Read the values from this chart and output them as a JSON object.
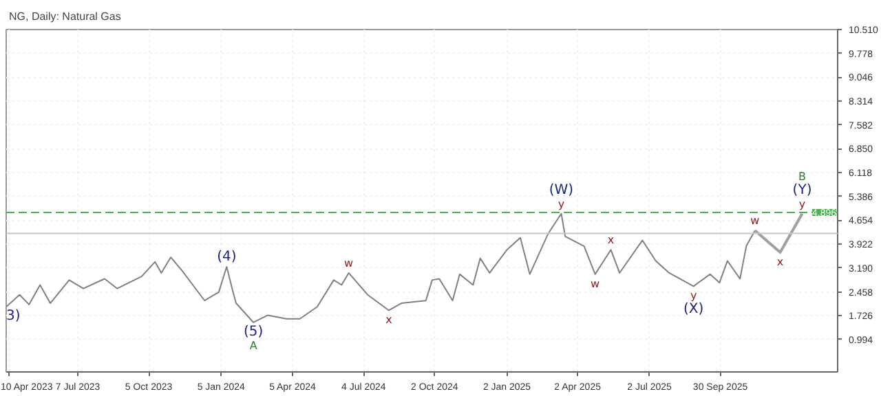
{
  "chart_data": {
    "type": "line",
    "title": "NG, Daily:  Natural Gas",
    "x": [
      "2023-04-07",
      "2023-04-24",
      "2023-05-06",
      "2023-05-20",
      "2023-06-02",
      "2023-06-26",
      "2023-07-14",
      "2023-08-10",
      "2023-08-26",
      "2023-09-26",
      "2023-10-13",
      "2023-10-21",
      "2023-11-02",
      "2023-11-16",
      "2023-12-15",
      "2024-01-02",
      "2024-01-12",
      "2024-01-21",
      "2024-01-24",
      "2024-02-15",
      "2024-03-04",
      "2024-03-28",
      "2024-04-14",
      "2024-05-06",
      "2024-05-27",
      "2024-06-06",
      "2024-06-15",
      "2024-07-09",
      "2024-08-05",
      "2024-08-21",
      "2024-09-21",
      "2024-09-29",
      "2024-10-08",
      "2024-10-25",
      "2024-11-03",
      "2024-11-20",
      "2024-11-29",
      "2024-12-11",
      "2025-01-02",
      "2025-01-19",
      "2025-01-31",
      "2025-02-23",
      "2025-03-12",
      "2025-03-17",
      "2025-04-10",
      "2025-04-24",
      "2025-05-14",
      "2025-05-25",
      "2025-06-23",
      "2025-07-10",
      "2025-07-27",
      "2025-08-27",
      "2025-09-17",
      "2025-09-29",
      "2025-10-09",
      "2025-10-25",
      "2025-11-02",
      "2025-11-13"
    ],
    "series": [
      {
        "color": "#808080",
        "values": [
          2.0,
          2.37,
          2.07,
          2.67,
          2.11,
          2.82,
          2.56,
          2.86,
          2.56,
          2.93,
          3.38,
          3.04,
          3.52,
          3.12,
          2.19,
          2.45,
          3.23,
          2.37,
          2.11,
          1.52,
          1.74,
          1.63,
          1.63,
          2.0,
          2.82,
          2.67,
          3.04,
          2.37,
          1.89,
          2.11,
          2.19,
          2.82,
          2.86,
          2.19,
          3.0,
          2.67,
          3.49,
          3.04,
          3.75,
          4.12,
          3.0,
          4.23,
          4.86,
          4.16,
          3.86,
          3.0,
          3.75,
          3.04,
          4.04,
          3.41,
          3.04,
          2.63,
          3.0,
          2.74,
          3.41,
          2.86,
          3.86,
          4.34
        ]
      },
      {
        "color": "#a0a0a0",
        "x": [
          "2025-11-13",
          "2025-12-15",
          "2026-01-12"
        ],
        "values": [
          4.34,
          3.67,
          4.86
        ]
      }
    ],
    "xlim": [
      "2023-04-07",
      "2026-02-26"
    ],
    "xticks": [
      {
        "value": "2023-04-10",
        "label": "10 Apr 2023"
      },
      {
        "value": "2023-07-07",
        "label": "7 Jul 2023"
      },
      {
        "value": "2023-10-05",
        "label": "5 Oct 2023"
      },
      {
        "value": "2024-01-05",
        "label": "5 Jan 2024"
      },
      {
        "value": "2024-04-05",
        "label": "5 Apr 2024"
      },
      {
        "value": "2024-07-04",
        "label": "4 Jul 2024"
      },
      {
        "value": "2024-10-02",
        "label": "2 Oct 2024"
      },
      {
        "value": "2025-01-02",
        "label": "2 Jan 2025"
      },
      {
        "value": "2025-04-02",
        "label": "2 Apr 2025"
      },
      {
        "value": "2025-07-02",
        "label": "2 Jul 2025"
      },
      {
        "value": "2025-09-30",
        "label": "30 Sep 2025"
      }
    ],
    "ylim": [
      0.0,
      10.51
    ],
    "yticks": [
      {
        "value": 0.994,
        "label": "0.994"
      },
      {
        "value": 1.726,
        "label": "1.726"
      },
      {
        "value": 2.458,
        "label": "2.458"
      },
      {
        "value": 3.19,
        "label": "3.190"
      },
      {
        "value": 3.922,
        "label": "3.922"
      },
      {
        "value": 4.654,
        "label": "4.654"
      },
      {
        "value": 5.386,
        "label": "5.386"
      },
      {
        "value": 6.118,
        "label": "6.118"
      },
      {
        "value": 6.85,
        "label": "6.850"
      },
      {
        "value": 7.582,
        "label": "7.582"
      },
      {
        "value": 8.314,
        "label": "8.314"
      },
      {
        "value": 9.046,
        "label": "9.046"
      },
      {
        "value": 9.778,
        "label": "9.778"
      },
      {
        "value": 10.51,
        "label": "10.510"
      }
    ],
    "ref_lines": [
      {
        "axis": "y",
        "value": 4.896,
        "label": "4.896",
        "color": "#4caf50",
        "line_style": "dashed"
      },
      {
        "axis": "y",
        "value": 4.25,
        "label": null,
        "color": "#c8c8c8",
        "line_style": "solid"
      }
    ],
    "annotations": [
      {
        "text": "3)",
        "x": "2023-04-07",
        "y": 2.0
      },
      {
        "text": "(4)",
        "x": "2024-01-12",
        "y": 3.23
      },
      {
        "text": "(5)",
        "x": "2024-02-15",
        "y": 1.52
      },
      {
        "text": "A",
        "x": "2024-02-15",
        "y": 1.52
      },
      {
        "text": "w",
        "x": "2024-06-15",
        "y": 3.04
      },
      {
        "text": "x",
        "x": "2024-08-05",
        "y": 1.89
      },
      {
        "text": "y",
        "x": "2025-03-12",
        "y": 4.86
      },
      {
        "text": "(W)",
        "x": "2025-03-12",
        "y": 4.86
      },
      {
        "text": "w",
        "x": "2025-04-24",
        "y": 3.0
      },
      {
        "text": "x",
        "x": "2025-05-14",
        "y": 3.75
      },
      {
        "text": "y",
        "x": "2025-08-27",
        "y": 2.63
      },
      {
        "text": "(X)",
        "x": "2025-08-27",
        "y": 2.63
      },
      {
        "text": "w",
        "x": "2025-11-13",
        "y": 4.34
      },
      {
        "text": "x",
        "x": "2025-12-15",
        "y": 3.67
      },
      {
        "text": "y",
        "x": "2026-01-12",
        "y": 4.86
      },
      {
        "text": "(Y)",
        "x": "2026-01-12",
        "y": 4.86
      },
      {
        "text": "B",
        "x": "2026-01-12",
        "y": 4.86
      }
    ],
    "grid": true
  }
}
